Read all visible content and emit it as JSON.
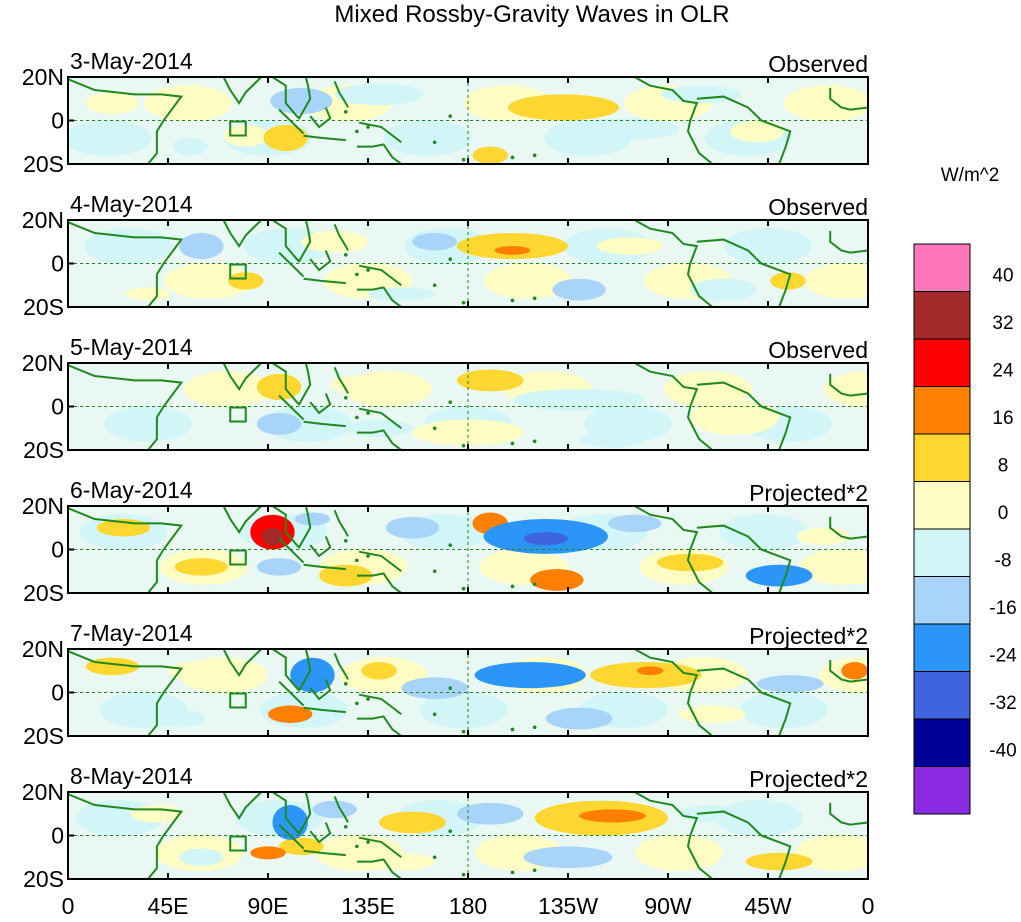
{
  "chart_data": {
    "type": "heatmap",
    "title": "Mixed Rossby-Gravity Waves in OLR",
    "units": "W/m^2",
    "panels": [
      {
        "date": "3-May-2014",
        "kind": "Observed"
      },
      {
        "date": "4-May-2014",
        "kind": "Observed"
      },
      {
        "date": "5-May-2014",
        "kind": "Observed"
      },
      {
        "date": "6-May-2014",
        "kind": "Projected*2"
      },
      {
        "date": "7-May-2014",
        "kind": "Projected*2"
      },
      {
        "date": "8-May-2014",
        "kind": "Projected*2"
      }
    ],
    "y_ticks": [
      "20N",
      "0",
      "20S"
    ],
    "x_ticks": [
      "0",
      "45E",
      "90E",
      "135E",
      "180",
      "135W",
      "90W",
      "45W",
      "0"
    ],
    "xlim": [
      0,
      360
    ],
    "ylim": [
      -20,
      20
    ],
    "colorbar": {
      "levels": [
        "40",
        "32",
        "24",
        "16",
        "8",
        "0",
        "-8",
        "-16",
        "-24",
        "-32",
        "-40"
      ],
      "colors": [
        "#ff77bb",
        "#a52a2a",
        "#ff0000",
        "#ff7f00",
        "#ffd730",
        "#fffdc4",
        "#d2f5f8",
        "#a8d4fa",
        "#2b96f8",
        "#3f64de",
        "#000099",
        "#8a2be2"
      ]
    },
    "blobs": [
      [
        {
          "lon": 20,
          "lat": 8,
          "rx": 12,
          "ry": 5,
          "v": 6
        },
        {
          "lon": 105,
          "lat": 9,
          "rx": 14,
          "ry": 6,
          "v": -12
        },
        {
          "lon": 80,
          "lat": -7,
          "rx": 10,
          "ry": 5,
          "v": 5
        },
        {
          "lon": 98,
          "lat": -8,
          "rx": 10,
          "ry": 6,
          "v": 10
        },
        {
          "lon": 140,
          "lat": 12,
          "rx": 20,
          "ry": 5,
          "v": -7
        },
        {
          "lon": 223,
          "lat": 6,
          "rx": 25,
          "ry": 6,
          "v": 11
        },
        {
          "lon": 190,
          "lat": -16,
          "rx": 8,
          "ry": 4,
          "v": 10
        },
        {
          "lon": 250,
          "lat": -4,
          "rx": 25,
          "ry": 5,
          "v": -6
        },
        {
          "lon": 310,
          "lat": -5,
          "rx": 12,
          "ry": 5,
          "v": 6
        },
        {
          "lon": 55,
          "lat": -12,
          "rx": 8,
          "ry": 4,
          "v": -5
        },
        {
          "lon": 285,
          "lat": 12,
          "rx": 18,
          "ry": 4,
          "v": -6
        }
      ],
      [
        {
          "lon": 60,
          "lat": 8,
          "rx": 10,
          "ry": 6,
          "v": -10
        },
        {
          "lon": 80,
          "lat": -8,
          "rx": 8,
          "ry": 4,
          "v": 8
        },
        {
          "lon": 120,
          "lat": 10,
          "rx": 15,
          "ry": 5,
          "v": 6
        },
        {
          "lon": 165,
          "lat": 10,
          "rx": 10,
          "ry": 4,
          "v": -10
        },
        {
          "lon": 200,
          "lat": 8,
          "rx": 25,
          "ry": 6,
          "v": 12
        },
        {
          "lon": 200,
          "lat": 6,
          "rx": 8,
          "ry": 2,
          "v": 18
        },
        {
          "lon": 230,
          "lat": -12,
          "rx": 12,
          "ry": 5,
          "v": -10
        },
        {
          "lon": 253,
          "lat": 8,
          "rx": 15,
          "ry": 4,
          "v": 6
        },
        {
          "lon": 295,
          "lat": -12,
          "rx": 15,
          "ry": 5,
          "v": -8
        },
        {
          "lon": 324,
          "lat": -8,
          "rx": 8,
          "ry": 4,
          "v": 9
        },
        {
          "lon": 36,
          "lat": -14,
          "rx": 10,
          "ry": 3,
          "v": 5
        },
        {
          "lon": 150,
          "lat": -14,
          "rx": 15,
          "ry": 3,
          "v": -6
        }
      ],
      [
        {
          "lon": 95,
          "lat": 9,
          "rx": 10,
          "ry": 6,
          "v": 12
        },
        {
          "lon": 95,
          "lat": -8,
          "rx": 10,
          "ry": 5,
          "v": -9
        },
        {
          "lon": 130,
          "lat": 10,
          "rx": 12,
          "ry": 4,
          "v": 6
        },
        {
          "lon": 190,
          "lat": 12,
          "rx": 15,
          "ry": 5,
          "v": 9
        },
        {
          "lon": 180,
          "lat": -12,
          "rx": 25,
          "ry": 6,
          "v": 5
        },
        {
          "lon": 230,
          "lat": 3,
          "rx": 30,
          "ry": 5,
          "v": -6
        },
        {
          "lon": 245,
          "lat": -15,
          "rx": 15,
          "ry": 4,
          "v": -8
        },
        {
          "lon": 300,
          "lat": -5,
          "rx": 20,
          "ry": 8,
          "v": 4
        },
        {
          "lon": 40,
          "lat": -5,
          "rx": 12,
          "ry": 4,
          "v": -6
        },
        {
          "lon": 140,
          "lat": -10,
          "rx": 15,
          "ry": 4,
          "v": -5
        }
      ],
      [
        {
          "lon": 92,
          "lat": 8,
          "rx": 10,
          "ry": 8,
          "v": 26
        },
        {
          "lon": 92,
          "lat": 6,
          "rx": 5,
          "ry": 4,
          "v": 33
        },
        {
          "lon": 95,
          "lat": -8,
          "rx": 10,
          "ry": 4,
          "v": -16
        },
        {
          "lon": 125,
          "lat": -12,
          "rx": 12,
          "ry": 5,
          "v": 12
        },
        {
          "lon": 155,
          "lat": 10,
          "rx": 12,
          "ry": 5,
          "v": -10
        },
        {
          "lon": 190,
          "lat": 12,
          "rx": 8,
          "ry": 5,
          "v": 20
        },
        {
          "lon": 215,
          "lat": 6,
          "rx": 28,
          "ry": 8,
          "v": -20
        },
        {
          "lon": 215,
          "lat": 5,
          "rx": 10,
          "ry": 3,
          "v": -28
        },
        {
          "lon": 220,
          "lat": -14,
          "rx": 12,
          "ry": 5,
          "v": 20
        },
        {
          "lon": 255,
          "lat": 12,
          "rx": 12,
          "ry": 4,
          "v": -12
        },
        {
          "lon": 280,
          "lat": -6,
          "rx": 15,
          "ry": 4,
          "v": 8
        },
        {
          "lon": 320,
          "lat": -12,
          "rx": 15,
          "ry": 5,
          "v": -22
        },
        {
          "lon": 60,
          "lat": -8,
          "rx": 12,
          "ry": 4,
          "v": 8
        },
        {
          "lon": 25,
          "lat": 10,
          "rx": 12,
          "ry": 4,
          "v": 10
        },
        {
          "lon": 340,
          "lat": 6,
          "rx": 12,
          "ry": 4,
          "v": 6
        },
        {
          "lon": 110,
          "lat": 14,
          "rx": 8,
          "ry": 3,
          "v": -10
        }
      ],
      [
        {
          "lon": 110,
          "lat": 8,
          "rx": 10,
          "ry": 8,
          "v": -20
        },
        {
          "lon": 100,
          "lat": -10,
          "rx": 10,
          "ry": 4,
          "v": 18
        },
        {
          "lon": 140,
          "lat": 10,
          "rx": 8,
          "ry": 4,
          "v": 8
        },
        {
          "lon": 165,
          "lat": 2,
          "rx": 15,
          "ry": 5,
          "v": -10
        },
        {
          "lon": 208,
          "lat": 8,
          "rx": 25,
          "ry": 6,
          "v": -18
        },
        {
          "lon": 260,
          "lat": 8,
          "rx": 25,
          "ry": 6,
          "v": 14
        },
        {
          "lon": 262,
          "lat": 10,
          "rx": 6,
          "ry": 2,
          "v": 20
        },
        {
          "lon": 230,
          "lat": -12,
          "rx": 15,
          "ry": 5,
          "v": -10
        },
        {
          "lon": 290,
          "lat": -10,
          "rx": 15,
          "ry": 4,
          "v": 6
        },
        {
          "lon": 325,
          "lat": 4,
          "rx": 15,
          "ry": 4,
          "v": -10
        },
        {
          "lon": 354,
          "lat": 10,
          "rx": 6,
          "ry": 4,
          "v": 18
        },
        {
          "lon": 20,
          "lat": 12,
          "rx": 12,
          "ry": 4,
          "v": 8
        },
        {
          "lon": 55,
          "lat": 10,
          "rx": 10,
          "ry": 4,
          "v": 6
        },
        {
          "lon": 50,
          "lat": -12,
          "rx": 12,
          "ry": 4,
          "v": -6
        }
      ],
      [
        {
          "lon": 100,
          "lat": 6,
          "rx": 8,
          "ry": 8,
          "v": -20
        },
        {
          "lon": 120,
          "lat": 12,
          "rx": 10,
          "ry": 4,
          "v": -10
        },
        {
          "lon": 105,
          "lat": -5,
          "rx": 10,
          "ry": 4,
          "v": 8
        },
        {
          "lon": 90,
          "lat": -8,
          "rx": 8,
          "ry": 3,
          "v": 18
        },
        {
          "lon": 155,
          "lat": 6,
          "rx": 15,
          "ry": 5,
          "v": 10
        },
        {
          "lon": 190,
          "lat": 10,
          "rx": 15,
          "ry": 5,
          "v": -10
        },
        {
          "lon": 240,
          "lat": 8,
          "rx": 30,
          "ry": 8,
          "v": 14
        },
        {
          "lon": 245,
          "lat": 9,
          "rx": 15,
          "ry": 3,
          "v": 22
        },
        {
          "lon": 225,
          "lat": -10,
          "rx": 20,
          "ry": 5,
          "v": -10
        },
        {
          "lon": 290,
          "lat": 10,
          "rx": 15,
          "ry": 4,
          "v": -8
        },
        {
          "lon": 320,
          "lat": -12,
          "rx": 15,
          "ry": 4,
          "v": 10
        },
        {
          "lon": 40,
          "lat": 10,
          "rx": 12,
          "ry": 4,
          "v": 6
        },
        {
          "lon": 150,
          "lat": -12,
          "rx": 15,
          "ry": 4,
          "v": 6
        },
        {
          "lon": 60,
          "lat": -10,
          "rx": 10,
          "ry": 4,
          "v": -6
        }
      ]
    ]
  }
}
